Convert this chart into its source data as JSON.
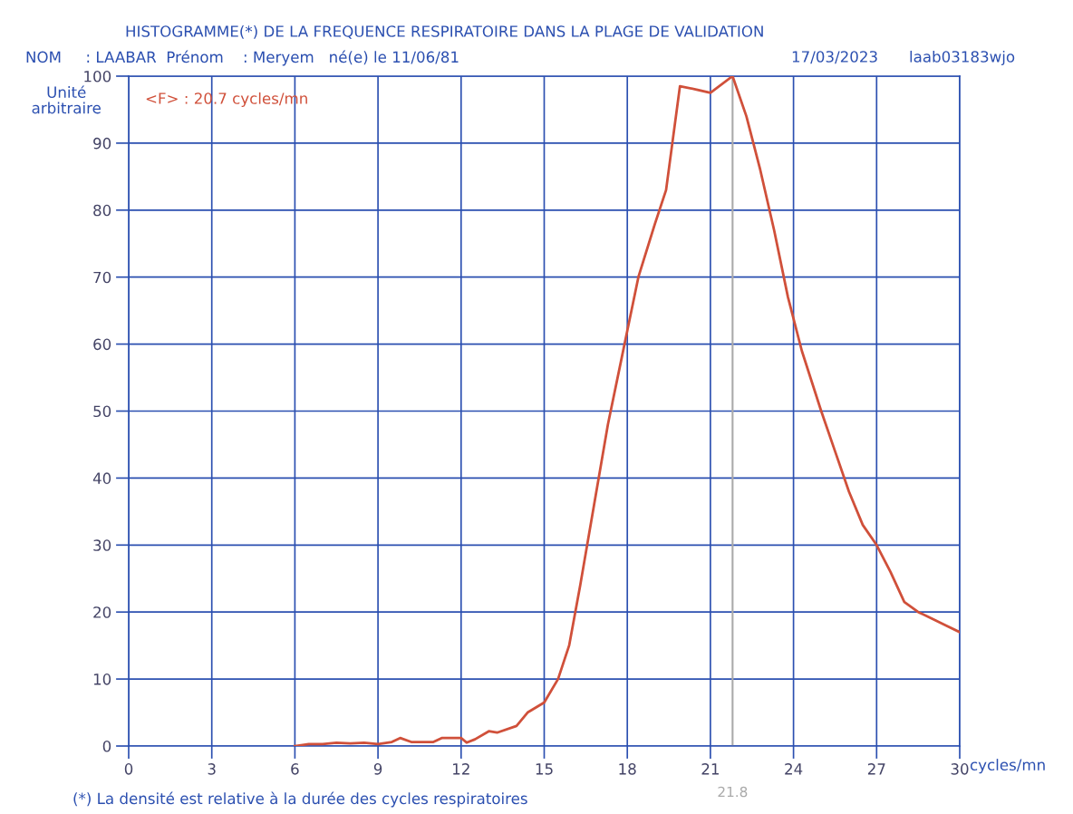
{
  "chart_data": {
    "type": "line",
    "title": "HISTOGRAMME(*) DE LA FREQUENCE RESPIRATOIRE DANS LA PLAGE DE VALIDATION",
    "subtitle": "NOM     : LAABAR  Prénom    : Meryem   né(e) le 11/06/81",
    "xlabel": "cycles/mn",
    "ylabel": "Unité\narbitraire",
    "x": [
      6,
      6.5,
      7,
      7.5,
      8,
      8.5,
      9,
      9.5,
      9.8,
      10.2,
      11,
      11.3,
      12,
      12.2,
      12.5,
      13,
      13.3,
      14,
      14.4,
      15,
      15.5,
      15.9,
      16.3,
      16.8,
      17.3,
      17.8,
      18,
      18.4,
      19,
      19.4,
      19.9,
      20.5,
      21,
      21.8,
      22.3,
      22.8,
      23.3,
      23.8,
      24.3,
      25,
      25.5,
      26,
      26.5,
      27,
      27.5,
      28,
      28.5,
      29,
      29.5,
      30
    ],
    "series": [
      {
        "color": "#d0503a",
        "values": [
          0,
          0.3,
          0.3,
          0.5,
          0.4,
          0.5,
          0.3,
          0.6,
          1.2,
          0.6,
          0.6,
          1.2,
          1.2,
          0.5,
          1,
          2.2,
          2,
          3,
          5,
          6.5,
          10,
          15,
          24,
          36,
          48,
          58,
          62,
          70,
          78,
          83,
          98.5,
          98,
          97.5,
          100,
          94,
          86,
          77,
          67,
          59,
          50,
          44,
          38,
          33,
          30,
          26,
          21.5,
          20,
          19,
          18,
          17
        ]
      }
    ],
    "xlim": [
      0,
      30
    ],
    "xticks": [
      0,
      3,
      6,
      9,
      12,
      15,
      18,
      21,
      24,
      27,
      30
    ],
    "ylim": [
      0,
      100
    ],
    "yticks": [
      0,
      10,
      20,
      30,
      40,
      50,
      60,
      70,
      80,
      90,
      100
    ],
    "grid": true,
    "marker": "none",
    "line_style": "solid",
    "ref_lines": [
      {
        "axis": "x",
        "value": 21.8,
        "label": "21.8",
        "color": "#aaaaaa"
      }
    ],
    "annotations": [
      "<F> : 20.7 cycles/mn",
      "17/03/2023",
      "laab03183wjo",
      "(*) La densité est relative à la durée des cycles respiratoires"
    ]
  }
}
